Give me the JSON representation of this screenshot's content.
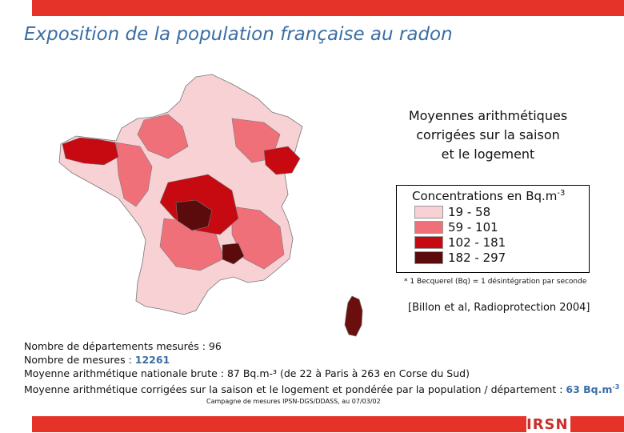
{
  "title": "Exposition de la population française au radon",
  "legend": {
    "heading_lines": [
      "Moyennes arithmétiques",
      "corrigées sur la saison",
      "et le logement"
    ],
    "concentrations_label": "Concentrations en Bq.m",
    "concentrations_exp": "-3",
    "classes": [
      {
        "label": "19 - 58",
        "color": "#f7d1d4"
      },
      {
        "label": "59 - 101",
        "color": "#f0707a"
      },
      {
        "label": "102 - 181",
        "color": "#c70a12"
      },
      {
        "label": "182 - 297",
        "color": "#5b0b0b"
      }
    ]
  },
  "note": "* 1 Becquerel (Bq) = 1 désintégration par seconde",
  "citation": "[Billon et al, Radioprotection 2004]",
  "stats": {
    "departments": "Nombre de départements mesurés : 96",
    "measures_label": "Nombre de mesures : ",
    "measures_value": "12261",
    "raw_mean": "Moyenne arithmétique nationale brute : 87 Bq.m-³  (de 22 à Paris à 263 en Corse du Sud)",
    "corrected_label": "Moyenne arithmétique corrigées sur la saison et le logement et pondérée par la population / département : ",
    "corrected_value": "63 Bq.m",
    "corrected_exp": "-3"
  },
  "campaign": "Campagne de mesures IPSN-DGS/DDASS, au 07/03/02",
  "logo_text": "IRSN",
  "colors": {
    "accent_bar": "#e6332a",
    "title": "#3a6ea5"
  }
}
